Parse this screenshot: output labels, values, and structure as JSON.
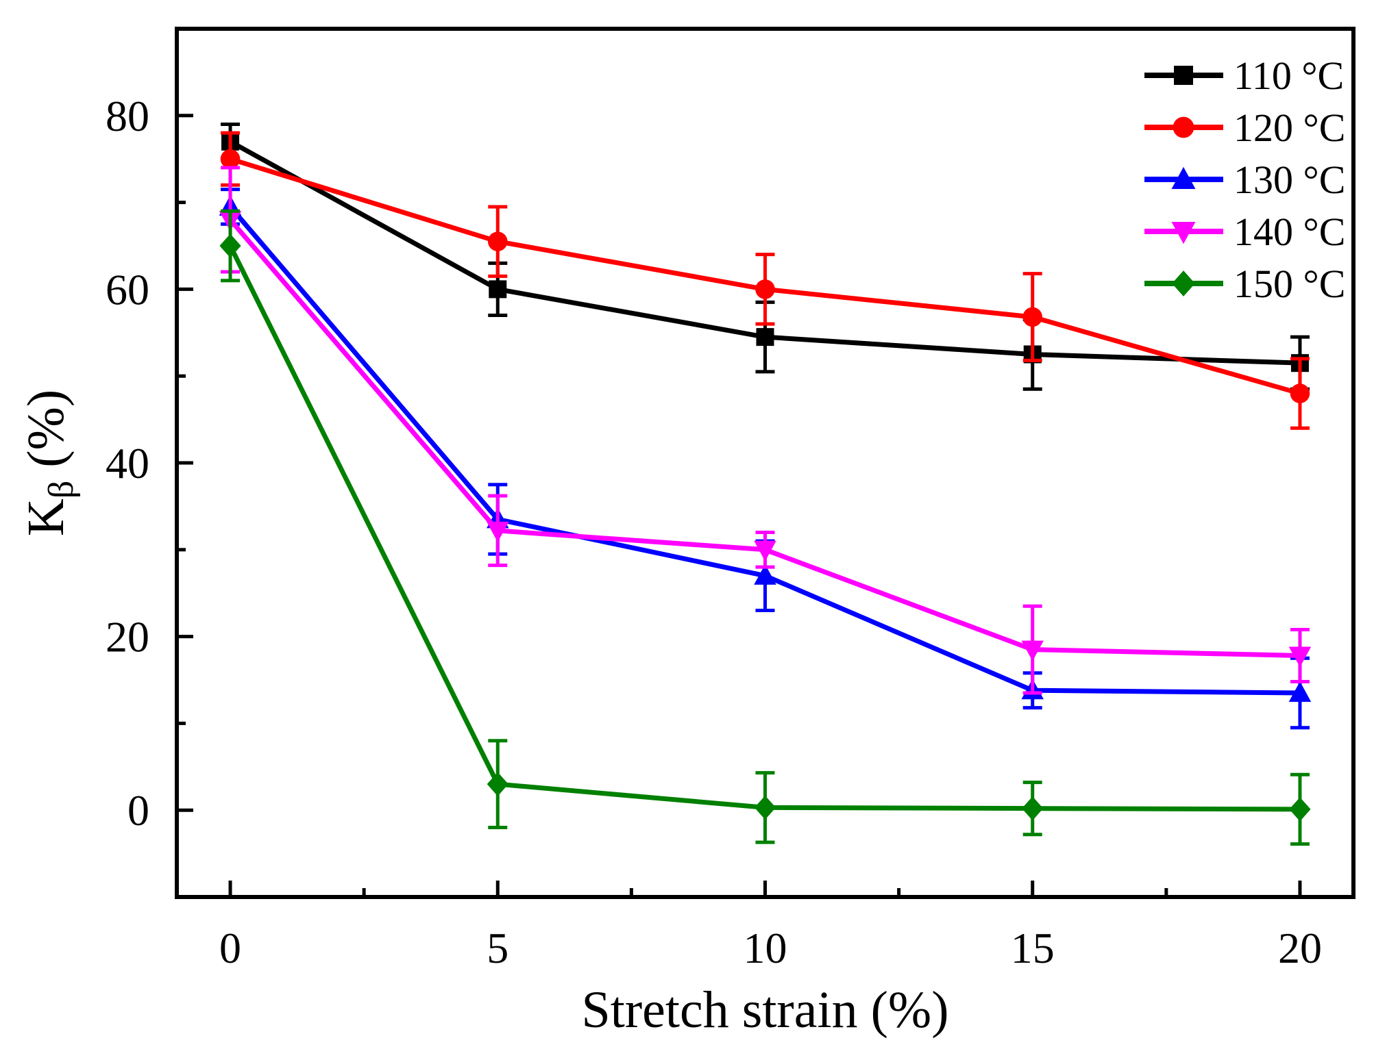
{
  "chart_data": {
    "type": "line",
    "title": "",
    "xlabel": "Stretch strain (%)",
    "ylabel_main": "K",
    "ylabel_sub": "β",
    "ylabel_unit": " (%)",
    "xlim": [
      -1,
      21
    ],
    "ylim": [
      -10,
      90
    ],
    "xticks": [
      0,
      5,
      10,
      15,
      20
    ],
    "yticks": [
      0,
      20,
      40,
      60,
      80
    ],
    "x": [
      0,
      5,
      10,
      15,
      20
    ],
    "grid": false,
    "legend_position": "top-right",
    "series": [
      {
        "name": "110 °C",
        "color": "#000000",
        "marker": "square",
        "values": [
          77,
          60,
          54.5,
          52.5,
          51.5
        ],
        "errors": [
          2,
          3,
          4,
          4,
          3
        ]
      },
      {
        "name": "120 °C",
        "color": "#ff0000",
        "marker": "circle",
        "values": [
          75,
          65.5,
          60,
          56.8,
          48
        ],
        "errors": [
          3,
          4,
          4,
          5,
          4
        ]
      },
      {
        "name": "130 °C",
        "color": "#0000ff",
        "marker": "triangle-up",
        "values": [
          69.5,
          33.5,
          27,
          13.8,
          13.5
        ],
        "errors": [
          2,
          4,
          4,
          2,
          4
        ]
      },
      {
        "name": "140 °C",
        "color": "#ff00ff",
        "marker": "triangle-down",
        "values": [
          68,
          32.2,
          30,
          18.5,
          17.8
        ],
        "errors": [
          6,
          4,
          2,
          5,
          3
        ]
      },
      {
        "name": "150 °C",
        "color": "#008000",
        "marker": "diamond",
        "values": [
          65,
          3,
          0.3,
          0.2,
          0.1
        ],
        "errors": [
          4,
          5,
          4,
          3,
          4
        ]
      }
    ]
  }
}
